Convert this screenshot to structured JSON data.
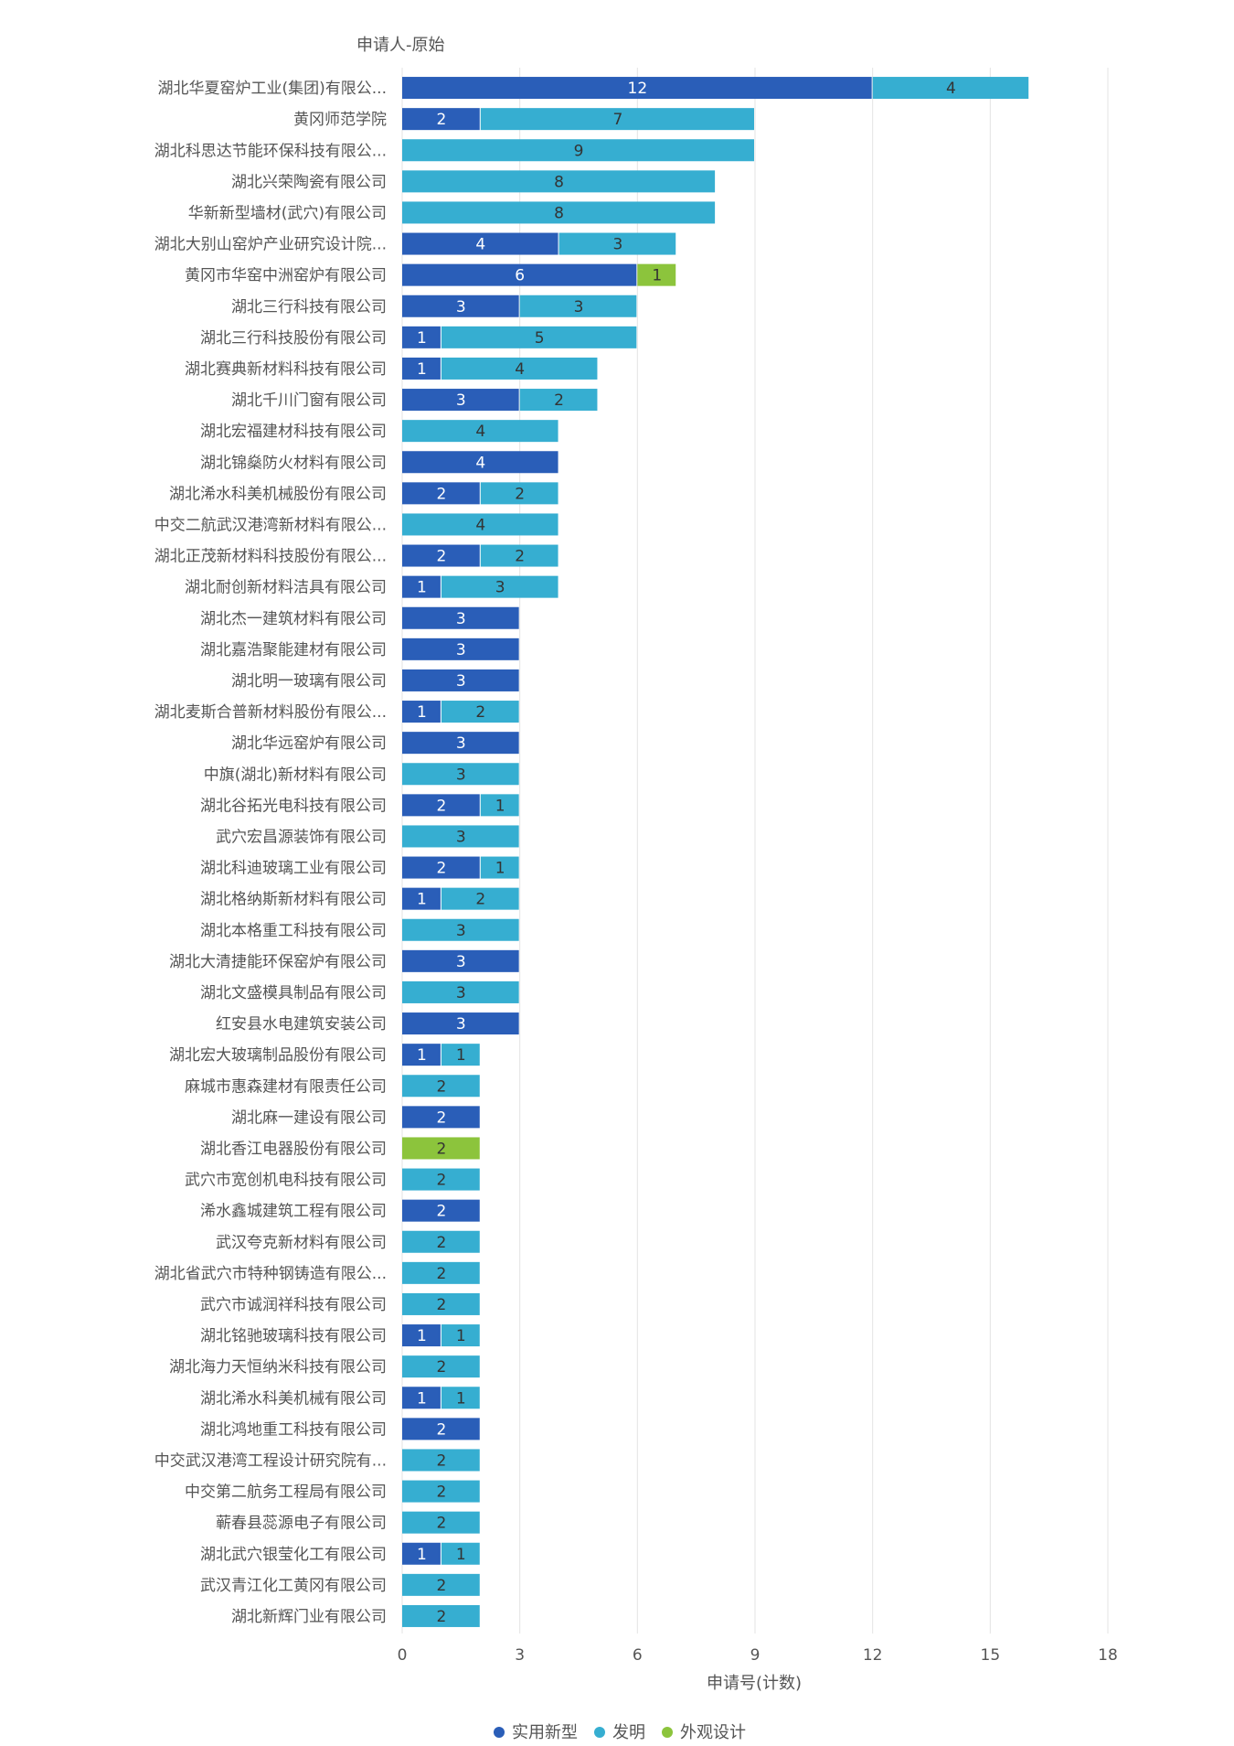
{
  "chart_data": {
    "type": "bar",
    "orientation": "horizontal",
    "stacked": true,
    "title": "",
    "ylabel": "申请人-原始",
    "xlabel": "申请号(计数)",
    "xlim": [
      0,
      18
    ],
    "xticks": [
      0,
      3,
      6,
      9,
      12,
      15,
      18
    ],
    "grid": true,
    "legend_position": "bottom",
    "colors": {
      "实用新型": "#2a5eb8",
      "发明": "#36aed1",
      "外观设计": "#8cc43c"
    },
    "categories": [
      "湖北华夏窑炉工业(集团)有限公...",
      "黄冈师范学院",
      "湖北科思达节能环保科技有限公...",
      "湖北兴荣陶瓷有限公司",
      "华新新型墙材(武穴)有限公司",
      "湖北大别山窑炉产业研究设计院...",
      "黄冈市华窑中洲窑炉有限公司",
      "湖北三行科技有限公司",
      "湖北三行科技股份有限公司",
      "湖北赛典新材料科技有限公司",
      "湖北千川门窗有限公司",
      "湖北宏福建材科技有限公司",
      "湖北锦燊防火材料有限公司",
      "湖北浠水科美机械股份有限公司",
      "中交二航武汉港湾新材料有限公...",
      "湖北正茂新材料科技股份有限公...",
      "湖北耐创新材料洁具有限公司",
      "湖北杰一建筑材料有限公司",
      "湖北嘉浩聚能建材有限公司",
      "湖北明一玻璃有限公司",
      "湖北麦斯合普新材料股份有限公...",
      "湖北华远窑炉有限公司",
      "中旗(湖北)新材料有限公司",
      "湖北谷拓光电科技有限公司",
      "武穴宏昌源装饰有限公司",
      "湖北科迪玻璃工业有限公司",
      "湖北格纳斯新材料有限公司",
      "湖北本格重工科技有限公司",
      "湖北大清捷能环保窑炉有限公司",
      "湖北文盛模具制品有限公司",
      "红安县水电建筑安装公司",
      "湖北宏大玻璃制品股份有限公司",
      "麻城市惠森建材有限责任公司",
      "湖北麻一建设有限公司",
      "湖北香江电器股份有限公司",
      "武穴市宽创机电科技有限公司",
      "浠水鑫城建筑工程有限公司",
      "武汉夸克新材料有限公司",
      "湖北省武穴市特种钢铸造有限公...",
      "武穴市诚润祥科技有限公司",
      "湖北铭驰玻璃科技有限公司",
      "湖北海力天恒纳米科技有限公司",
      "湖北浠水科美机械有限公司",
      "湖北鸿地重工科技有限公司",
      "中交武汉港湾工程设计研究院有...",
      "中交第二航务工程局有限公司",
      "蕲春县蕊源电子有限公司",
      "湖北武穴银莹化工有限公司",
      "武汉青江化工黄冈有限公司",
      "湖北新辉门业有限公司"
    ],
    "series": [
      {
        "name": "实用新型",
        "values": [
          12,
          2,
          0,
          0,
          0,
          4,
          6,
          3,
          1,
          1,
          3,
          0,
          4,
          2,
          0,
          2,
          1,
          3,
          3,
          3,
          1,
          3,
          0,
          2,
          0,
          2,
          1,
          0,
          3,
          0,
          3,
          1,
          0,
          2,
          0,
          0,
          2,
          0,
          0,
          0,
          1,
          0,
          1,
          2,
          0,
          0,
          0,
          1,
          0,
          0
        ]
      },
      {
        "name": "发明",
        "values": [
          4,
          7,
          9,
          8,
          8,
          3,
          0,
          3,
          5,
          4,
          2,
          4,
          0,
          2,
          4,
          2,
          3,
          0,
          0,
          0,
          2,
          0,
          3,
          1,
          3,
          1,
          2,
          3,
          0,
          3,
          0,
          1,
          2,
          0,
          0,
          2,
          0,
          2,
          2,
          2,
          1,
          2,
          1,
          0,
          2,
          2,
          2,
          1,
          2,
          2
        ]
      },
      {
        "name": "外观设计",
        "values": [
          0,
          0,
          0,
          0,
          0,
          0,
          1,
          0,
          0,
          0,
          0,
          0,
          0,
          0,
          0,
          0,
          0,
          0,
          0,
          0,
          0,
          0,
          0,
          0,
          0,
          0,
          0,
          0,
          0,
          0,
          0,
          0,
          0,
          0,
          2,
          0,
          0,
          0,
          0,
          0,
          0,
          0,
          0,
          0,
          0,
          0,
          0,
          0,
          0,
          0
        ]
      }
    ]
  }
}
